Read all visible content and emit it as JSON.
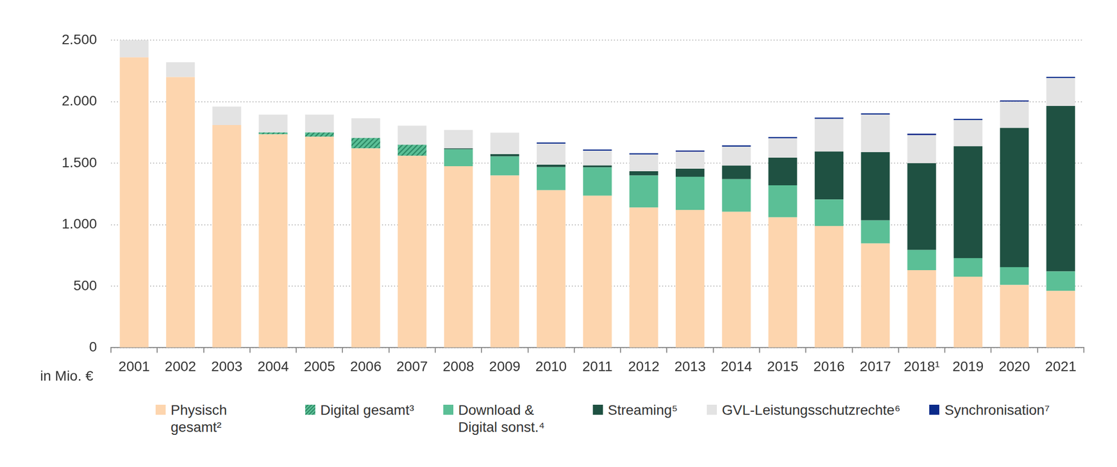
{
  "chart_data": {
    "type": "bar",
    "stacked": true,
    "grid": true,
    "legend": "bottom",
    "ylabel": "in Mio. €",
    "categories": [
      "2001",
      "2002",
      "2003",
      "2004",
      "2005",
      "2006",
      "2007",
      "2008",
      "2009",
      "2010",
      "2011",
      "2012",
      "2013",
      "2014",
      "2015",
      "2016",
      "2017",
      "2018¹",
      "2019",
      "2020",
      "2021"
    ],
    "ylim": [
      0,
      2500
    ],
    "yticks": [
      0,
      500,
      {
        "value": 1000,
        "label": "1.000"
      },
      {
        "value": 1500,
        "label": "1.500"
      },
      {
        "value": 2000,
        "label": "2.000"
      },
      {
        "value": 2500,
        "label": "2.500"
      }
    ],
    "series": [
      {
        "name": "Physisch gesamt²",
        "color": "#fdd5ae",
        "values": [
          2360,
          2200,
          1810,
          1735,
          1715,
          1620,
          1560,
          1475,
          1400,
          1280,
          1235,
          1140,
          1120,
          1105,
          1060,
          990,
          848,
          630,
          577,
          510,
          462
        ]
      },
      {
        "name": "Digital gesamt³",
        "color": "#5bbf96",
        "values": [
          null,
          null,
          null,
          15,
          35,
          85,
          90,
          null,
          null,
          null,
          null,
          null,
          null,
          null,
          null,
          null,
          null,
          null,
          null,
          null,
          null
        ]
      },
      {
        "name": "Download & Digital sonst.⁴",
        "color": "#5bbf96",
        "values": [
          null,
          null,
          null,
          null,
          null,
          null,
          null,
          138,
          155,
          188,
          231,
          260,
          270,
          265,
          260,
          215,
          187,
          165,
          151,
          145,
          158
        ]
      },
      {
        "name": "Streaming⁵",
        "color": "#1f5142",
        "values": [
          null,
          null,
          null,
          null,
          null,
          null,
          null,
          7,
          18,
          20,
          15,
          35,
          65,
          110,
          225,
          390,
          555,
          705,
          910,
          1132,
          1345
        ]
      },
      {
        "name": "GVL-Leistungsschutzrechte⁶",
        "color": "#e3e3e3",
        "values": [
          140,
          120,
          150,
          145,
          145,
          160,
          155,
          150,
          175,
          170,
          120,
          135,
          138,
          155,
          157,
          265,
          305,
          228,
          212,
          213,
          227
        ]
      },
      {
        "name": "Synchronisation⁷",
        "color": "#0a2a8a",
        "values": [
          null,
          null,
          null,
          null,
          null,
          null,
          null,
          null,
          null,
          10,
          10,
          10,
          10,
          10,
          10,
          10,
          10,
          12,
          10,
          10,
          10
        ]
      }
    ]
  }
}
